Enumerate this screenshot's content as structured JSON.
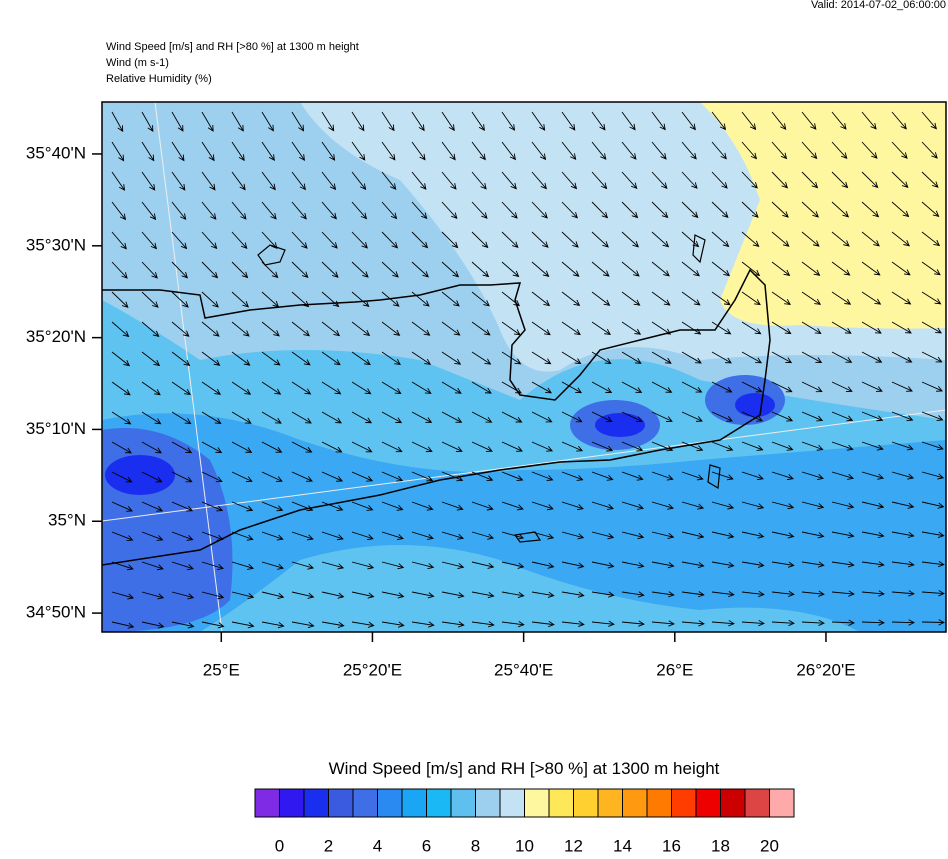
{
  "valid_time": "Valid: 2014-07-02_06:00:00",
  "header": {
    "title": "Wind Speed [m/s] and RH [>80 %] at 1300 m height",
    "line2": "Wind   (m s-1)",
    "line3": "Relative Humidity   (%)"
  },
  "map": {
    "xlim": [
      24.737,
      26.598
    ],
    "ylim": [
      34.799,
      35.761
    ],
    "xticks": [
      {
        "value": 25,
        "label": "25°E"
      },
      {
        "value": 25.3333,
        "label": "25°20'E"
      },
      {
        "value": 25.6667,
        "label": "25°40'E"
      },
      {
        "value": 26,
        "label": "26°E"
      },
      {
        "value": 26.3333,
        "label": "26°20'E"
      }
    ],
    "yticks": [
      {
        "value": 35.6667,
        "label": "35°40'N"
      },
      {
        "value": 35.5,
        "label": "35°30'N"
      },
      {
        "value": 35.3333,
        "label": "35°20'N"
      },
      {
        "value": 35.1667,
        "label": "35°10'N"
      },
      {
        "value": 35,
        "label": "35°N"
      },
      {
        "value": 34.8333,
        "label": "34°50'N"
      }
    ]
  },
  "colorbar": {
    "title": "Wind Speed [m/s] and RH [>80 %] at 1300 m height",
    "lim": [
      -1,
      21
    ],
    "ticks": [
      0,
      2,
      4,
      6,
      8,
      10,
      12,
      14,
      16,
      18,
      20
    ],
    "colors": [
      "#7f2be6",
      "#3019f0",
      "#1a2ef0",
      "#3a5ae0",
      "#3f6fe6",
      "#2a8af2",
      "#1aa6f5",
      "#1ab8f5",
      "#5fc0f0",
      "#9dd0ef",
      "#c3e3f5",
      "#fff7a0",
      "#ffe75a",
      "#ffd030",
      "#ffb520",
      "#ff9a10",
      "#ff7a00",
      "#ff3d00",
      "#ee0000",
      "#cc0000",
      "#dd4444",
      "#ffaaaa"
    ]
  }
}
